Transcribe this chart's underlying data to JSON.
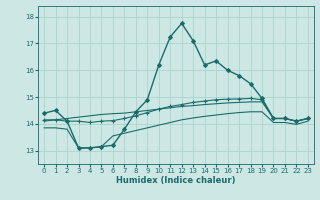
{
  "xlabel": "Humidex (Indice chaleur)",
  "background_color": "#cde8e4",
  "grid_color": "#aad4cc",
  "line_color": "#1a6b6b",
  "xlim": [
    -0.5,
    23.5
  ],
  "ylim": [
    12.5,
    18.4
  ],
  "xticks": [
    0,
    1,
    2,
    3,
    4,
    5,
    6,
    7,
    8,
    9,
    10,
    11,
    12,
    13,
    14,
    15,
    16,
    17,
    18,
    19,
    20,
    21,
    22,
    23
  ],
  "yticks": [
    13,
    14,
    15,
    16,
    17,
    18
  ],
  "series": [
    {
      "x": [
        0,
        1,
        2,
        3,
        4,
        5,
        6,
        7,
        8,
        9,
        10,
        11,
        12,
        13,
        14,
        15,
        16,
        17,
        18,
        19,
        20,
        21,
        22,
        23
      ],
      "y": [
        14.4,
        14.5,
        14.1,
        13.1,
        13.1,
        13.15,
        13.2,
        13.8,
        14.45,
        14.9,
        16.2,
        17.25,
        17.75,
        17.1,
        16.2,
        16.35,
        16.0,
        15.8,
        15.5,
        14.95,
        14.2,
        14.2,
        14.1,
        14.2
      ],
      "marker": "D",
      "markersize": 2.0,
      "linewidth": 1.0
    },
    {
      "x": [
        0,
        1,
        2,
        3,
        4,
        5,
        6,
        7,
        8,
        9,
        10,
        11,
        12,
        13,
        14,
        15,
        16,
        17,
        18,
        19,
        20,
        21,
        22,
        23
      ],
      "y": [
        14.15,
        14.15,
        14.1,
        14.1,
        14.05,
        14.1,
        14.12,
        14.2,
        14.3,
        14.42,
        14.55,
        14.65,
        14.72,
        14.8,
        14.85,
        14.9,
        14.92,
        14.93,
        14.95,
        14.9,
        14.2,
        14.2,
        14.1,
        14.2
      ],
      "marker": "+",
      "markersize": 3.0,
      "linewidth": 0.8
    },
    {
      "x": [
        0,
        1,
        2,
        3,
        4,
        5,
        6,
        7,
        8,
        9,
        10,
        11,
        12,
        13,
        14,
        15,
        16,
        17,
        18,
        19,
        20,
        21,
        22,
        23
      ],
      "y": [
        14.1,
        14.15,
        14.2,
        14.25,
        14.3,
        14.35,
        14.38,
        14.4,
        14.45,
        14.5,
        14.55,
        14.6,
        14.65,
        14.68,
        14.72,
        14.75,
        14.78,
        14.8,
        14.82,
        14.82,
        14.2,
        14.2,
        14.1,
        14.2
      ],
      "marker": null,
      "markersize": 0,
      "linewidth": 0.8
    },
    {
      "x": [
        0,
        1,
        2,
        3,
        4,
        5,
        6,
        7,
        8,
        9,
        10,
        11,
        12,
        13,
        14,
        15,
        16,
        17,
        18,
        19,
        20,
        21,
        22,
        23
      ],
      "y": [
        13.85,
        13.85,
        13.8,
        13.1,
        13.1,
        13.15,
        13.55,
        13.65,
        13.75,
        13.85,
        13.95,
        14.05,
        14.15,
        14.22,
        14.28,
        14.33,
        14.38,
        14.42,
        14.45,
        14.45,
        14.05,
        14.05,
        13.98,
        14.1
      ],
      "marker": null,
      "markersize": 0,
      "linewidth": 0.8
    }
  ]
}
